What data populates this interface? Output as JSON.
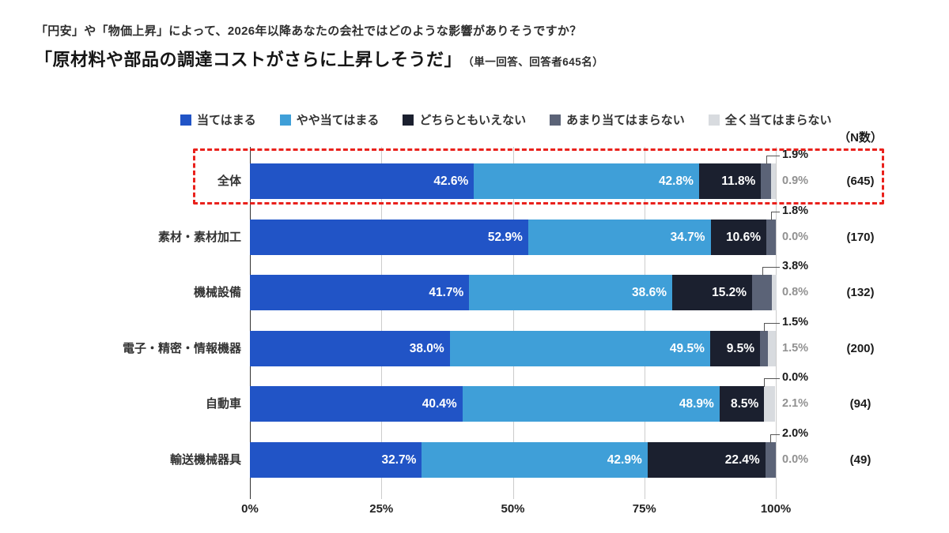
{
  "title": {
    "question": "「円安」や「物価上昇」によって、2026年以降あなたの会社ではどのような影響がありそうですか？",
    "statement": "「原材料や部品の調達コストがさらに上昇しそうだ」",
    "note": "（単一回答、回答者645名）"
  },
  "n_header": "（N数）",
  "colors": {
    "agree": "#2154c6",
    "somewhat_agree": "#3f9fd8",
    "neither": "#1b202f",
    "somewhat_disagree": "#5b6377",
    "disagree": "#d8dbdf",
    "highlight_border": "#e9211c",
    "gridline": "#cccccc",
    "axis": "#333333",
    "gray_label": "#919191"
  },
  "chart_data": {
    "type": "bar",
    "stacked": true,
    "orientation": "horizontal",
    "unit": "%",
    "title": "原材料や部品の調達コストがさらに上昇しそうだ",
    "categories": [
      "全体",
      "素材・素材加工",
      "機械設備",
      "電子・精密・情報機器",
      "自動車",
      "輸送機械器具"
    ],
    "series": [
      {
        "name": "当てはまる",
        "color": "#2154c6",
        "values": [
          42.6,
          52.9,
          41.7,
          38.0,
          40.4,
          32.7
        ]
      },
      {
        "name": "やや当てはまる",
        "color": "#3f9fd8",
        "values": [
          42.8,
          34.7,
          38.6,
          49.5,
          48.9,
          42.9
        ]
      },
      {
        "name": "どちらともいえない",
        "color": "#1b202f",
        "values": [
          11.8,
          10.6,
          15.2,
          9.5,
          8.5,
          22.4
        ]
      },
      {
        "name": "あまり当てはまらない",
        "color": "#5b6377",
        "values": [
          1.9,
          1.8,
          3.8,
          1.5,
          0.0,
          2.0
        ]
      },
      {
        "name": "全く当てはまらない",
        "color": "#d8dbdf",
        "values": [
          0.9,
          0.0,
          0.8,
          1.5,
          2.1,
          0.0
        ]
      }
    ],
    "n_labels": [
      "(645)",
      "(170)",
      "(132)",
      "(200)",
      "(94)",
      "(49)"
    ],
    "n_values": [
      645,
      170,
      132,
      200,
      94,
      49
    ],
    "highlighted_category": "全体",
    "xlim": [
      0,
      100
    ],
    "x_ticks": [
      "0%",
      "25%",
      "50%",
      "75%",
      "100%"
    ],
    "legend_position": "top",
    "grid": true
  }
}
